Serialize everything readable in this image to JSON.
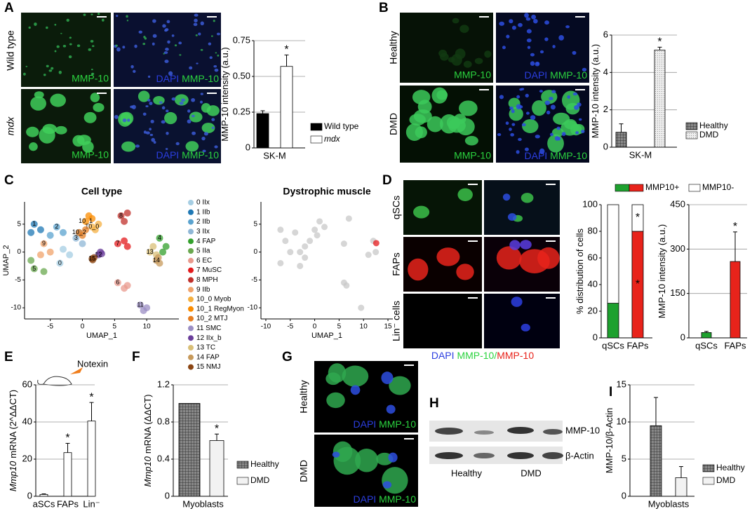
{
  "panel_labels": [
    "A",
    "B",
    "C",
    "D",
    "E",
    "F",
    "G",
    "H",
    "I"
  ],
  "panel_a": {
    "rows": [
      "Wild type",
      "mdx"
    ],
    "stain": "MMP-10",
    "counterstain": "DAPI"
  },
  "panel_b": {
    "rows": [
      "Healthy",
      "DMD"
    ],
    "stain": "MMP-10",
    "counterstain": "DAPI"
  },
  "panel_d": {
    "rows": [
      "qSCs",
      "FAPs",
      "Lin⁻ cells"
    ],
    "caption": [
      "DAPI",
      "MMP-10/",
      "MMP-10"
    ]
  },
  "panel_e": {
    "treatment": "Notexin"
  },
  "panel_g": {
    "rows": [
      "Healthy",
      "DMD"
    ],
    "stain": "MMP-10",
    "counterstain": "DAPI"
  },
  "panel_h": {
    "bands": [
      "MMP-10",
      "β-Actin"
    ],
    "groups": [
      "Healthy",
      "DMD"
    ]
  },
  "chart_data": [
    {
      "type": "bar",
      "ylabel": "MMP-10 intensity (a.u.)",
      "categories": [
        "SK-M"
      ],
      "ylim": [
        0,
        0.75
      ],
      "yticks": [
        0,
        0.25,
        {
          "value": 0.5,
          "label": "0.50"
        },
        0.75
      ],
      "grid": true,
      "series": [
        {
          "name": "Wild type",
          "color": "#000000",
          "values": [
            0.24
          ],
          "errors": [
            0.02
          ],
          "significance": [
            null
          ]
        },
        {
          "name": "mdx",
          "color": "#ffffff",
          "font_style": "italic",
          "values": [
            0.57
          ],
          "errors": [
            0.08
          ],
          "significance": [
            "*"
          ]
        }
      ]
    },
    {
      "type": "bar",
      "ylabel": "MMP-10 intensity (a.u.)",
      "categories": [
        "SK-M"
      ],
      "ylim": [
        0,
        6
      ],
      "yticks": [
        0,
        2,
        4,
        6
      ],
      "grid": true,
      "series": [
        {
          "name": "Healthy",
          "color": "#777777",
          "pattern": "grid",
          "values": [
            0.8
          ],
          "errors": [
            0.45
          ],
          "significance": [
            null
          ]
        },
        {
          "name": "DMD",
          "color": "#dddddd",
          "pattern": "dots",
          "values": [
            5.2
          ],
          "errors": [
            0.15
          ],
          "significance": [
            "*"
          ]
        }
      ]
    },
    {
      "type": "scatter",
      "title": "Cell type",
      "xlabel": "UMAP_1",
      "ylabel": "UMAP_2",
      "xlim": [
        -9,
        15
      ],
      "ylim": [
        -12,
        9
      ],
      "xticks": [
        -5,
        0,
        5,
        10
      ],
      "yticks": [
        -10,
        -5,
        0,
        5
      ],
      "series": [
        {
          "name": "0 IIx",
          "label": "0",
          "color": "#a6cee3",
          "x": [
            -3.5,
            -2,
            -3
          ],
          "y": [
            -2,
            -0.5,
            0.5
          ]
        },
        {
          "name": "1 IIb",
          "label": "1",
          "color": "#1f78b4",
          "x": [
            -7.5,
            -6.5,
            -8
          ],
          "y": [
            5,
            4,
            3.5
          ]
        },
        {
          "name": "2 IIb",
          "label": "2",
          "color": "#5ba3cf",
          "x": [
            -4,
            -3,
            -5
          ],
          "y": [
            4.5,
            3.5,
            3
          ]
        },
        {
          "name": "3 IIx",
          "label": "3",
          "color": "#8fb7d6",
          "x": [
            -1,
            0,
            -0.5
          ],
          "y": [
            2.5,
            1.5,
            3.5
          ]
        },
        {
          "name": "4 FAP",
          "label": "4",
          "color": "#33a02c",
          "x": [
            12,
            13,
            12.5
          ],
          "y": [
            2.5,
            1,
            0
          ]
        },
        {
          "name": "5 IIa",
          "label": "5",
          "color": "#6aa84f",
          "x": [
            -7.5,
            -6,
            -8
          ],
          "y": [
            -3,
            -3.5,
            -1.5
          ]
        },
        {
          "name": "6 EC",
          "label": "6",
          "color": "#e99a8e",
          "x": [
            5.5,
            6.5,
            7
          ],
          "y": [
            -5.5,
            -6.5,
            -6
          ]
        },
        {
          "name": "7 MuSC",
          "label": "7",
          "color": "#e31a1c",
          "x": [
            5.5,
            6.5,
            7
          ],
          "y": [
            1.5,
            2,
            1
          ]
        },
        {
          "name": "8 MPH",
          "label": "8",
          "color": "#c0302b",
          "x": [
            6,
            7,
            6.5
          ],
          "y": [
            6.5,
            7,
            5.5
          ]
        },
        {
          "name": "9 IIb",
          "label": "9",
          "color": "#f0a36b",
          "x": [
            -6,
            -5,
            -6.5
          ],
          "y": [
            1.5,
            0,
            -0.5
          ]
        },
        {
          "name": "10_0 Myob",
          "label": "10_0",
          "color": "#f5b041",
          "x": [
            1.5,
            2.5,
            2
          ],
          "y": [
            4.5,
            5,
            4
          ]
        },
        {
          "name": "10_1 RegMyon",
          "label": "10_1",
          "color": "#fb8c00",
          "x": [
            0.5,
            1.5,
            1
          ],
          "y": [
            5.5,
            6,
            6.5
          ]
        },
        {
          "name": "10_2 MTJ",
          "label": "10_2",
          "color": "#e67e22",
          "x": [
            -0.5,
            0.5,
            0
          ],
          "y": [
            3.5,
            4,
            3
          ]
        },
        {
          "name": "11 SMC",
          "label": "11",
          "color": "#9b8ec4",
          "x": [
            9,
            10,
            9.5
          ],
          "y": [
            -9.5,
            -10,
            -10.5
          ]
        },
        {
          "name": "12 IIx_b",
          "label": "12",
          "color": "#6a3d9a",
          "x": [
            2.5,
            3,
            2.8
          ],
          "y": [
            -0.5,
            -0.3,
            0
          ]
        },
        {
          "name": "13 TC",
          "label": "13",
          "color": "#d9bf77",
          "x": [
            10.5,
            11.5,
            11
          ],
          "y": [
            0,
            -0.5,
            1
          ]
        },
        {
          "name": "14 FAP",
          "label": "14",
          "color": "#c79a5b",
          "x": [
            11.5,
            12,
            11.8
          ],
          "y": [
            -1.5,
            -2,
            -1
          ]
        },
        {
          "name": "15 NMJ",
          "label": "15",
          "color": "#8b4513",
          "x": [
            1.5,
            1.8,
            1.6
          ],
          "y": [
            -1.2,
            -1,
            -1.4
          ]
        }
      ]
    },
    {
      "type": "scatter",
      "title": "Dystrophic muscle",
      "xlabel": "UMAP_1",
      "xlim": [
        -11,
        16
      ],
      "ylim": [
        -12,
        9
      ],
      "xticks": [
        -10,
        -5,
        0,
        5,
        10,
        15
      ],
      "yticks": [
        -10,
        -5,
        0,
        5
      ],
      "series": [
        {
          "color": "#c8c8c8",
          "x": [
            -7,
            -6,
            -4,
            -3,
            -2,
            -1,
            0,
            1,
            2,
            -5,
            -7,
            -3,
            6,
            7,
            6.5,
            12,
            12.5,
            11,
            6,
            9.5,
            -2,
            0.5
          ],
          "y": [
            4,
            2,
            3.5,
            0,
            -1,
            2,
            4,
            5.5,
            4.5,
            0,
            -2,
            -2.5,
            1.5,
            6,
            -6,
            2,
            0,
            -0.5,
            -5.5,
            -10,
            1,
            3
          ]
        },
        {
          "color": "#e41a1c",
          "x": [
            12.6
          ],
          "y": [
            1.6
          ]
        }
      ]
    },
    {
      "type": "bar",
      "ylabel": "% distribution of cells",
      "categories": [
        "qSCs",
        "FAPs"
      ],
      "ylim": [
        0,
        100
      ],
      "yticks": [
        0,
        20,
        40,
        60,
        80,
        100
      ],
      "grid": false,
      "stacked": true,
      "series": [
        {
          "name": "MMP10+",
          "colors": [
            "#1ea12f",
            "#e8231b"
          ],
          "values": [
            26,
            80
          ],
          "significance": [
            null,
            "*"
          ]
        },
        {
          "name": "MMP10-",
          "color": "#ffffff",
          "values": [
            74,
            20
          ],
          "significance": [
            null,
            "*"
          ]
        }
      ]
    },
    {
      "type": "bar",
      "ylabel": "MMP-10 intensity (a.u.)",
      "categories": [
        "qSCs",
        "FAPs"
      ],
      "ylim": [
        0,
        450
      ],
      "yticks": [
        0,
        150,
        300,
        450
      ],
      "grid": true,
      "colors": [
        "#1ea12f",
        "#e8231b"
      ],
      "values": [
        18,
        258
      ],
      "errors": [
        4,
        100
      ],
      "significance": [
        null,
        "*"
      ]
    },
    {
      "type": "bar",
      "ylabel_gene": "Mmp10",
      "ylabel": "mRNA (2^ΔΔCT)",
      "categories": [
        "aSCs",
        "FAPs",
        "Lin⁻"
      ],
      "ylim": [
        0,
        60
      ],
      "yticks": [
        0,
        20,
        40,
        60
      ],
      "grid": true,
      "color": "#ffffff",
      "values": [
        1,
        23.5,
        40.5
      ],
      "errors": [
        0.3,
        5,
        10
      ],
      "significance": [
        null,
        "*",
        "*"
      ]
    },
    {
      "type": "bar",
      "ylabel_gene": "Mmp10",
      "ylabel": "mRNA (ΔΔCT)",
      "categories": [
        "Myoblasts"
      ],
      "ylim": [
        0,
        1.2
      ],
      "yticks": [
        0,
        0.4,
        0.8,
        1.2
      ],
      "grid": true,
      "series": [
        {
          "name": "Healthy",
          "color": "#777777",
          "pattern": "grid",
          "values": [
            1.0
          ],
          "errors": [
            null
          ],
          "significance": [
            null
          ]
        },
        {
          "name": "DMD",
          "color": "#f2f2f2",
          "values": [
            0.6
          ],
          "errors": [
            0.07
          ],
          "significance": [
            "*"
          ]
        }
      ]
    },
    {
      "type": "bar",
      "ylabel": "MMP-10/β-Actin",
      "categories": [
        "Myoblasts"
      ],
      "ylim": [
        0,
        15
      ],
      "yticks": [
        0,
        5,
        10,
        15
      ],
      "grid": true,
      "series": [
        {
          "name": "Healthy",
          "color": "#777777",
          "pattern": "grid",
          "values": [
            9.5
          ],
          "errors": [
            3.8
          ],
          "significance": [
            null
          ]
        },
        {
          "name": "DMD",
          "color": "#f2f2f2",
          "values": [
            2.5
          ],
          "errors": [
            1.5
          ],
          "significance": [
            null
          ]
        }
      ]
    }
  ]
}
